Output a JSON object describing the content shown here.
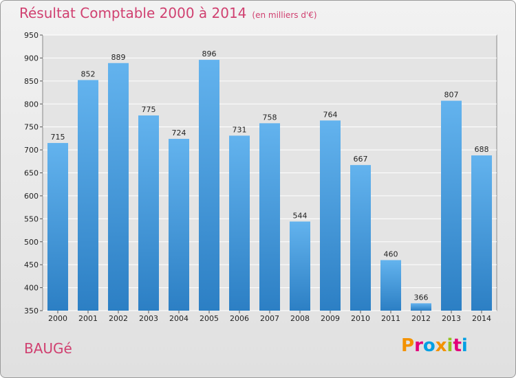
{
  "title": "Résultat Comptable 2000 à 2014",
  "subtitle": "(en milliers d'€)",
  "commune": "BAUGé",
  "logo": {
    "text": [
      "P",
      "r",
      "o",
      "x",
      "i",
      "t",
      "i"
    ],
    "colors": [
      "#f39200",
      "#e2007a",
      "#009fe3",
      "#f39200",
      "#95c11f",
      "#e2007a",
      "#009fe3"
    ]
  },
  "colors": {
    "bar_top": "#63b3ee",
    "bar_bottom": "#2c7fc4",
    "title": "#d04070"
  },
  "chart_data": {
    "type": "bar",
    "title": "Résultat Comptable 2000 à 2014",
    "subtitle": "(en milliers d'€)",
    "xlabel": "",
    "ylabel": "",
    "ylim": [
      350,
      950
    ],
    "yticks": [
      350,
      400,
      450,
      500,
      550,
      600,
      650,
      700,
      750,
      800,
      850,
      900,
      950
    ],
    "grid": true,
    "categories": [
      "2000",
      "2001",
      "2002",
      "2003",
      "2004",
      "2005",
      "2006",
      "2007",
      "2008",
      "2009",
      "2010",
      "2011",
      "2012",
      "2013",
      "2014"
    ],
    "values": [
      715,
      852,
      889,
      775,
      724,
      896,
      731,
      758,
      544,
      764,
      667,
      460,
      366,
      807,
      688
    ]
  }
}
